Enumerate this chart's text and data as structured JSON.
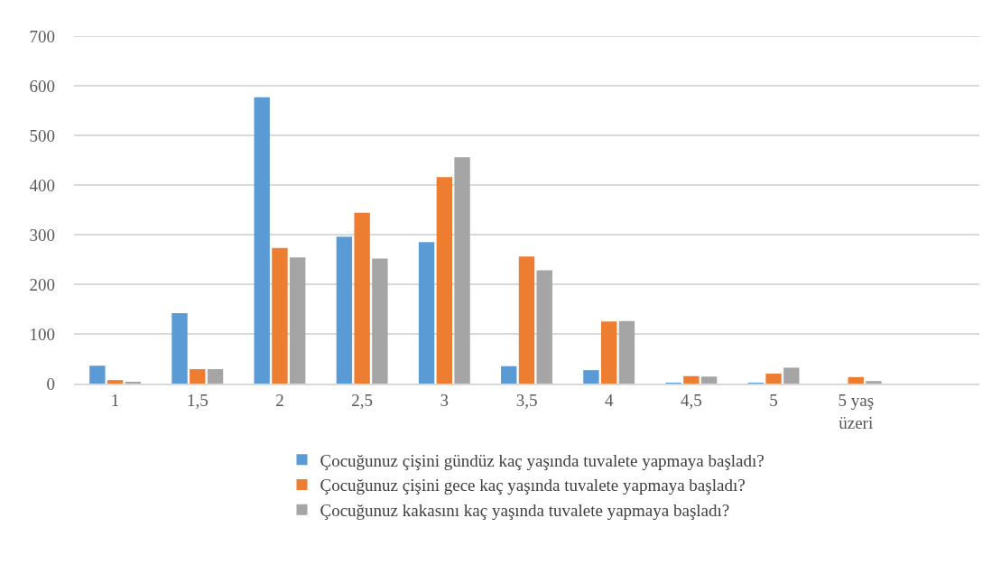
{
  "chart_data": {
    "type": "bar",
    "categories": [
      "1",
      "1,5",
      "2",
      "2,5",
      "3",
      "3,5",
      "4",
      "4,5",
      "5",
      "5 yaş üzeri",
      null
    ],
    "series": [
      {
        "name": "Çocuğunuz çişini gündüz kaç yaşında tuvalete yapmaya başladı?",
        "color": "#5b9bd5",
        "values": [
          36,
          142,
          577,
          296,
          285,
          35,
          27,
          1,
          1,
          null,
          null
        ]
      },
      {
        "name": "Çocuğunuz çişini gece kaç yaşında tuvalete yapmaya başladı?",
        "color": "#ed7d31",
        "values": [
          7,
          29,
          273,
          344,
          416,
          256,
          125,
          15,
          20,
          13,
          null
        ]
      },
      {
        "name": "Çocuğunuz kakasını kaç yaşında tuvalete yapmaya başladı?",
        "color": "#a5a5a5",
        "values": [
          3,
          29,
          254,
          252,
          456,
          228,
          126,
          14,
          32,
          5,
          null
        ]
      }
    ],
    "ylim": [
      0,
      700
    ],
    "yticks": [
      0,
      100,
      200,
      300,
      400,
      500,
      600,
      700
    ],
    "grid": "y",
    "legend": "bottom"
  }
}
